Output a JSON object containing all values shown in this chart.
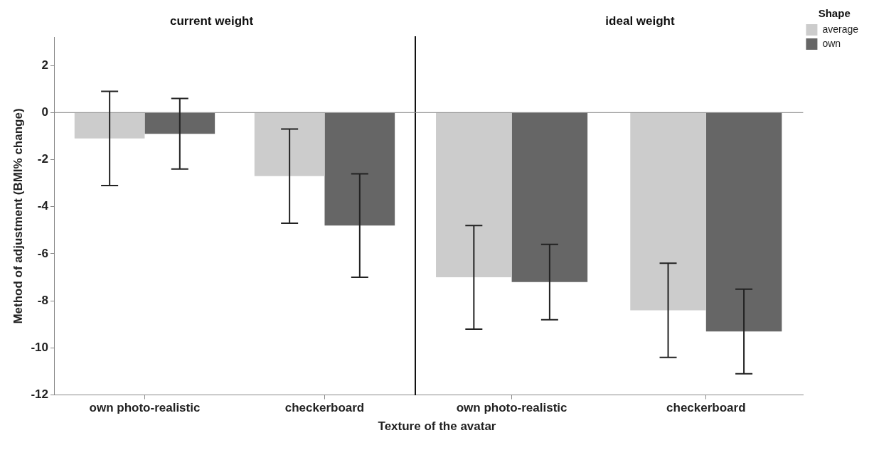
{
  "chart_data": [
    {
      "type": "bar",
      "title": "current weight",
      "xlabel": "Texture of the avatar",
      "ylabel": "Method of adjustment (BMI% change)",
      "categories": [
        "own photo-realistic",
        "checkerboard"
      ],
      "series": [
        {
          "color": "#cccccc",
          "values": [
            -1.1,
            -2.7
          ],
          "errors": [
            2.0,
            2.0
          ]
        },
        {
          "color": "#666666",
          "values": [
            -0.9,
            -4.8
          ],
          "errors": [
            1.5,
            2.2
          ]
        }
      ],
      "ylim": [
        -12,
        3.2
      ],
      "yticks": [
        -12,
        -10,
        -8,
        -6,
        -4,
        -2,
        0,
        2
      ],
      "grid": false,
      "legend": false,
      "ref_lines": [
        {
          "axis": "y",
          "value": 0,
          "color": "#888888"
        }
      ]
    },
    {
      "type": "bar",
      "title": "ideal weight",
      "categories": [
        "own photo-realistic",
        "checkerboard"
      ],
      "series": [
        {
          "name": "average",
          "color": "#cccccc",
          "values": [
            -7.0,
            -8.4
          ],
          "errors": [
            2.2,
            2.0
          ]
        },
        {
          "name": "own",
          "color": "#666666",
          "values": [
            -7.2,
            -9.3
          ],
          "errors": [
            1.6,
            1.8
          ]
        }
      ],
      "ylim": [
        -12,
        3.2
      ],
      "tick_labels": "x",
      "grid": false,
      "legend": "top right",
      "legend_title": "Shape",
      "ref_lines": [
        {
          "axis": "y",
          "value": 0,
          "color": "#888888"
        }
      ]
    }
  ]
}
